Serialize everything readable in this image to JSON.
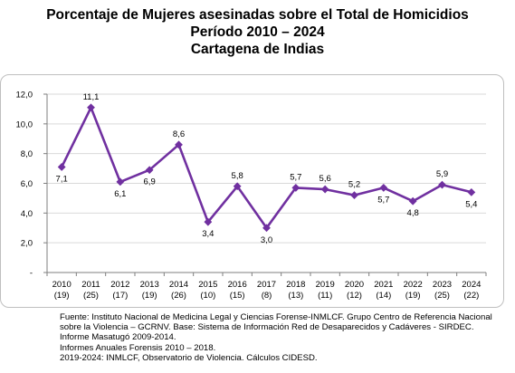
{
  "title_lines": [
    "Porcentaje de Mujeres asesinadas sobre el Total de Homicidios",
    "Período 2010 – 2024",
    "Cartagena de Indias"
  ],
  "colors": {
    "line": "#7030A0",
    "marker": "#7030A0",
    "grid": "#d9d9d9",
    "axis": "#7f7f7f"
  },
  "chart_data": {
    "type": "line",
    "title": "Porcentaje de Mujeres asesinadas sobre el Total de Homicidios Período 2010 – 2024 Cartagena de Indias",
    "xlabel": "",
    "ylabel": "",
    "categories": [
      "2010",
      "2011",
      "2012",
      "2013",
      "2014",
      "2015",
      "2016",
      "2017",
      "2018",
      "2019",
      "2020",
      "2021",
      "2022",
      "2023",
      "2024"
    ],
    "category_counts": [
      "(19)",
      "(25)",
      "(17)",
      "(19)",
      "(26)",
      "(10)",
      "(15)",
      "(8)",
      "(13)",
      "(11)",
      "(12)",
      "(14)",
      "(19)",
      "(25)",
      "(22)"
    ],
    "series": [
      {
        "values": [
          7.1,
          11.1,
          6.1,
          6.9,
          8.6,
          3.4,
          5.8,
          3.0,
          5.7,
          5.6,
          5.2,
          5.7,
          4.8,
          5.9,
          5.4
        ]
      }
    ],
    "data_labels": [
      "7,1",
      "11,1",
      "6,1",
      "6,9",
      "8,6",
      "3,4",
      "5,8",
      "3,0",
      "5,7",
      "5,6",
      "5,2",
      "5,7",
      "4,8",
      "5,9",
      "5,4"
    ],
    "label_positions": [
      "below",
      "above",
      "below",
      "below",
      "above",
      "below",
      "above",
      "below",
      "above",
      "above",
      "above",
      "below",
      "below",
      "above",
      "below"
    ],
    "yticks": [
      0,
      2,
      4,
      6,
      8,
      10,
      12
    ],
    "ytick_labels": [
      "-",
      "2,0",
      "4,0",
      "6,0",
      "8,0",
      "10,0",
      "12,0"
    ],
    "ylim": [
      0,
      12
    ],
    "grid": true,
    "legend": "none"
  },
  "source": {
    "line1": "Fuente: Instituto Nacional de Medicina Legal y Ciencias Forense-INMLCF. Grupo Centro de Referencia Nacional",
    "line2": "sobre la Violencia – GCRNV. Base: Sistema de Información Red de    Desaparecidos y     Cadáveres - SIRDEC.",
    "line3": "Informe Masatugó 2009-2014.",
    "line4": "Informes Anuales Forensis 2010 – 2018.",
    "line5": "2019-2024: INMLCF, Observatorio de Violencia. Cálculos CIDESD."
  }
}
